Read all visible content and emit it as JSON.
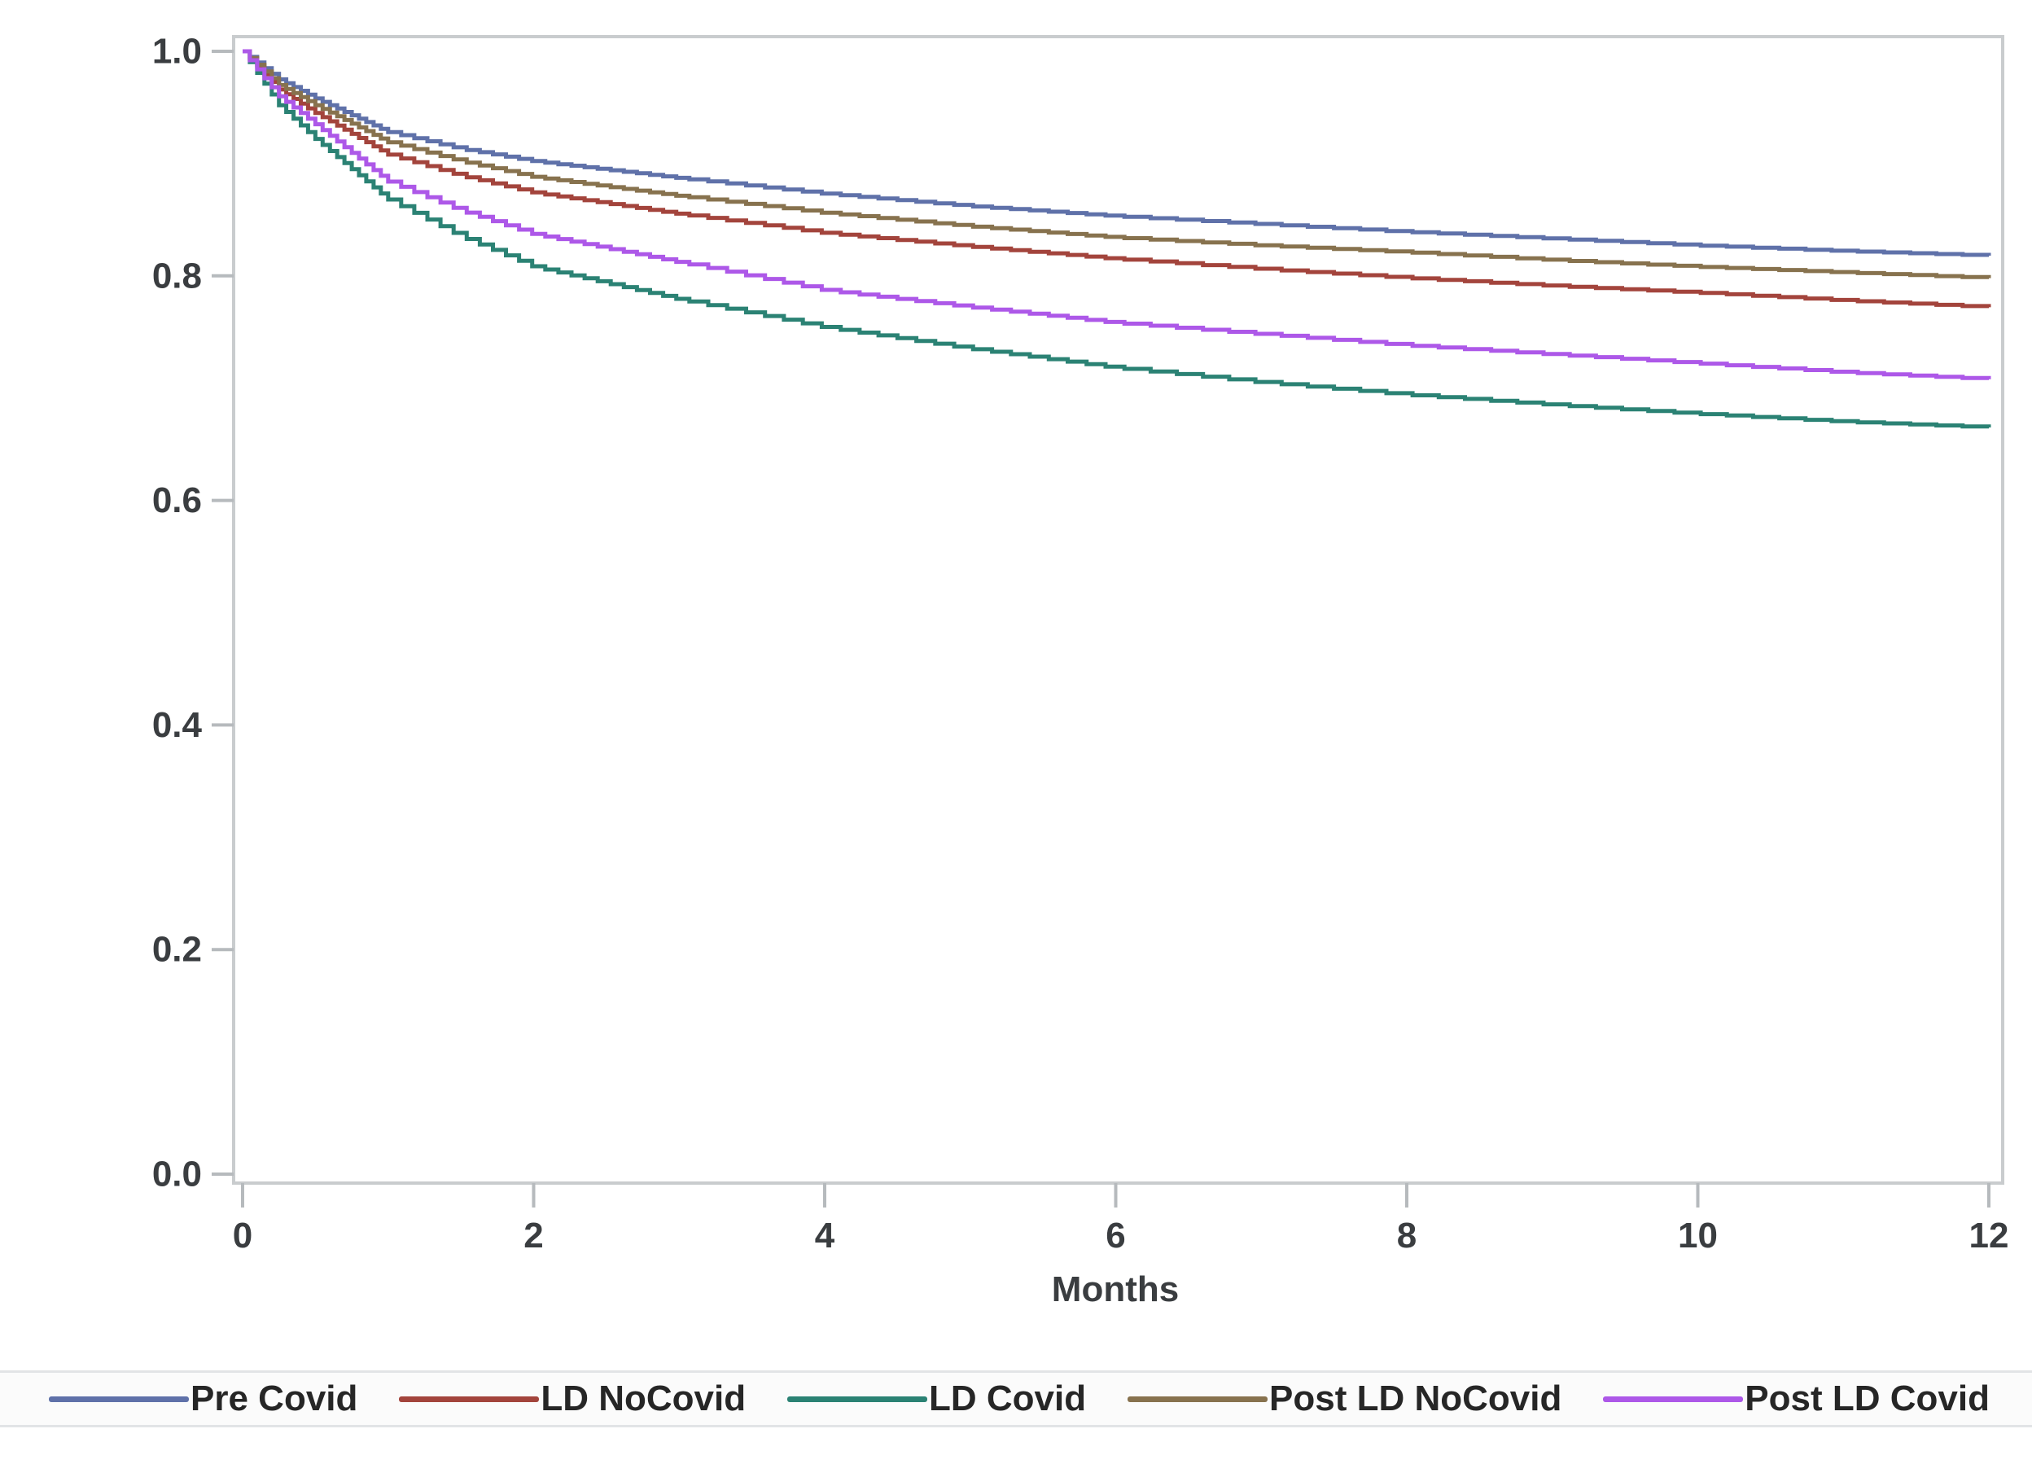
{
  "figure": {
    "title": "",
    "background": "#ffffff",
    "frame_color": "#c9ccce",
    "tick_color": "#b6babd",
    "text_color": "#3a3d40"
  },
  "chart_data": {
    "type": "line",
    "subtype": "kaplan-meier-step-survival",
    "title": "",
    "xlabel": "Months",
    "ylabel": "",
    "xlim": [
      0,
      12
    ],
    "ylim": [
      0.0,
      1.0
    ],
    "grid": false,
    "legend_position": "bottom",
    "x_tick_values": [
      0,
      2,
      4,
      6,
      8,
      10,
      12
    ],
    "x_tick_labels": [
      "0",
      "2",
      "4",
      "6",
      "8",
      "10",
      "12"
    ],
    "y_tick_values": [
      1.0,
      0.8,
      0.6,
      0.4,
      0.2,
      0.0
    ],
    "y_tick_labels": [
      "1.0",
      "0.8",
      "0.6",
      "0.4",
      "0.2",
      "0.0"
    ],
    "x": [
      0,
      0.25,
      0.5,
      1,
      1.5,
      2,
      3,
      4,
      5,
      6,
      7,
      8,
      9,
      10,
      11,
      12
    ],
    "series": [
      {
        "name": "Pre Covid",
        "color": "#5f71a9",
        "values": [
          1.0,
          0.975,
          0.958,
          0.928,
          0.913,
          0.902,
          0.887,
          0.873,
          0.862,
          0.853,
          0.846,
          0.839,
          0.833,
          0.827,
          0.822,
          0.818
        ]
      },
      {
        "name": "LD NoCovid",
        "color": "#a3443c",
        "values": [
          1.0,
          0.966,
          0.945,
          0.908,
          0.889,
          0.874,
          0.855,
          0.838,
          0.826,
          0.815,
          0.806,
          0.798,
          0.791,
          0.785,
          0.778,
          0.772
        ]
      },
      {
        "name": "LD Covid",
        "color": "#2b8274",
        "values": [
          1.0,
          0.952,
          0.922,
          0.868,
          0.835,
          0.808,
          0.779,
          0.754,
          0.735,
          0.718,
          0.705,
          0.694,
          0.685,
          0.677,
          0.67,
          0.665
        ]
      },
      {
        "name": "Post LD NoCovid",
        "color": "#87724e",
        "values": [
          1.0,
          0.97,
          0.952,
          0.919,
          0.902,
          0.888,
          0.871,
          0.856,
          0.844,
          0.834,
          0.827,
          0.821,
          0.814,
          0.808,
          0.803,
          0.798
        ]
      },
      {
        "name": "Post LD Covid",
        "color": "#ad58e8",
        "values": [
          1.0,
          0.96,
          0.935,
          0.884,
          0.858,
          0.837,
          0.812,
          0.787,
          0.772,
          0.758,
          0.748,
          0.738,
          0.73,
          0.722,
          0.714,
          0.708
        ]
      }
    ]
  }
}
